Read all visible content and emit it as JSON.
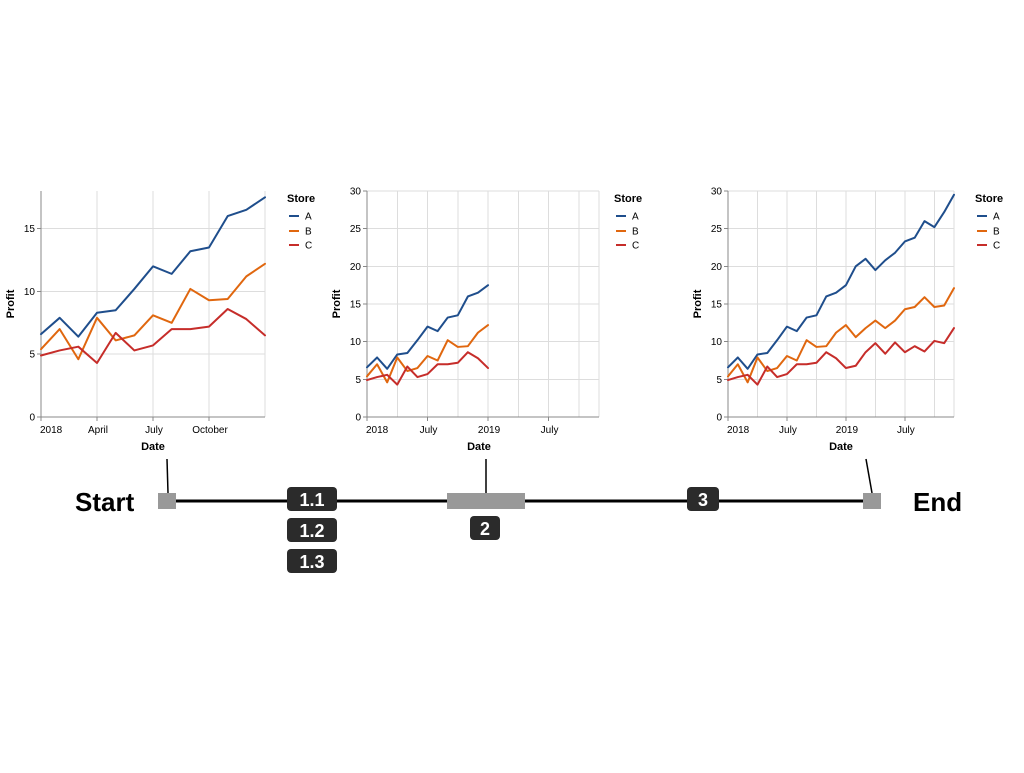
{
  "colors": {
    "A": "#1f4e8c",
    "B": "#e0670f",
    "C": "#c62d2a"
  },
  "legend": {
    "title": "Store",
    "items": [
      "A",
      "B",
      "C"
    ]
  },
  "chart_data": [
    {
      "type": "line",
      "xlabel": "Date",
      "ylabel": "Profit",
      "x_ticks": [
        "2018",
        "April",
        "July",
        "October"
      ],
      "y_ticks": [
        "0",
        "5",
        "10",
        "15"
      ],
      "ylim": [
        0,
        18
      ],
      "x": [
        "2018-01",
        "2018-02",
        "2018-03",
        "2018-04",
        "2018-05",
        "2018-06",
        "2018-07",
        "2018-08",
        "2018-09",
        "2018-10",
        "2018-11",
        "2018-12",
        "2019-01"
      ],
      "series": [
        {
          "name": "A",
          "values": [
            6.6,
            7.9,
            6.4,
            8.3,
            8.5,
            10.2,
            12.0,
            11.4,
            13.2,
            13.5,
            16.0,
            16.5,
            17.5
          ]
        },
        {
          "name": "B",
          "values": [
            5.4,
            7.0,
            4.6,
            7.9,
            6.1,
            6.5,
            8.1,
            7.5,
            10.2,
            9.3,
            9.4,
            11.2,
            12.2
          ]
        },
        {
          "name": "C",
          "values": [
            4.9,
            5.3,
            5.6,
            4.3,
            6.7,
            5.3,
            5.7,
            7.0,
            7.0,
            7.2,
            8.6,
            7.8,
            6.5
          ]
        }
      ]
    },
    {
      "type": "line",
      "xlabel": "Date",
      "ylabel": "Profit",
      "x_ticks": [
        "2018",
        "July",
        "2019",
        "July"
      ],
      "y_ticks": [
        "0",
        "5",
        "10",
        "15",
        "20",
        "25",
        "30"
      ],
      "ylim": [
        0,
        30
      ],
      "x": [
        "2018-01",
        "2018-02",
        "2018-03",
        "2018-04",
        "2018-05",
        "2018-06",
        "2018-07",
        "2018-08",
        "2018-09",
        "2018-10",
        "2018-11",
        "2018-12",
        "2019-01"
      ],
      "series": [
        {
          "name": "A",
          "values": [
            6.6,
            7.9,
            6.4,
            8.3,
            8.5,
            10.2,
            12.0,
            11.4,
            13.2,
            13.5,
            16.0,
            16.5,
            17.5
          ]
        },
        {
          "name": "B",
          "values": [
            5.4,
            7.0,
            4.6,
            7.9,
            6.1,
            6.5,
            8.1,
            7.5,
            10.2,
            9.3,
            9.4,
            11.2,
            12.2
          ]
        },
        {
          "name": "C",
          "values": [
            4.9,
            5.3,
            5.6,
            4.3,
            6.7,
            5.3,
            5.7,
            7.0,
            7.0,
            7.2,
            8.6,
            7.8,
            6.5
          ]
        }
      ]
    },
    {
      "type": "line",
      "xlabel": "Date",
      "ylabel": "Profit",
      "x_ticks": [
        "2018",
        "July",
        "2019",
        "July"
      ],
      "y_ticks": [
        "0",
        "5",
        "10",
        "15",
        "20",
        "25",
        "30"
      ],
      "ylim": [
        0,
        30
      ],
      "x": [
        "2018-01",
        "2018-02",
        "2018-03",
        "2018-04",
        "2018-05",
        "2018-06",
        "2018-07",
        "2018-08",
        "2018-09",
        "2018-10",
        "2018-11",
        "2018-12",
        "2019-01",
        "2019-02",
        "2019-03",
        "2019-04",
        "2019-05",
        "2019-06",
        "2019-07",
        "2019-08",
        "2019-09",
        "2019-10",
        "2019-11",
        "2019-12"
      ],
      "series": [
        {
          "name": "A",
          "values": [
            6.6,
            7.9,
            6.4,
            8.3,
            8.5,
            10.2,
            12.0,
            11.4,
            13.2,
            13.5,
            16.0,
            16.5,
            17.5,
            20.0,
            21.0,
            19.5,
            20.8,
            21.8,
            23.3,
            23.8,
            26.0,
            25.2,
            27.2,
            29.5
          ]
        },
        {
          "name": "B",
          "values": [
            5.4,
            7.0,
            4.6,
            7.9,
            6.1,
            6.5,
            8.1,
            7.5,
            10.2,
            9.3,
            9.4,
            11.2,
            12.2,
            10.6,
            11.8,
            12.8,
            11.8,
            12.8,
            14.3,
            14.6,
            15.9,
            14.6,
            14.8,
            17.1
          ]
        },
        {
          "name": "C",
          "values": [
            4.9,
            5.3,
            5.6,
            4.3,
            6.7,
            5.3,
            5.7,
            7.0,
            7.0,
            7.2,
            8.6,
            7.8,
            6.5,
            6.8,
            8.6,
            9.8,
            8.4,
            9.9,
            8.6,
            9.4,
            8.7,
            10.1,
            9.8,
            11.8
          ]
        }
      ]
    }
  ],
  "timeline": {
    "start_label": "Start",
    "end_label": "End",
    "badges": [
      "1.1",
      "1.2",
      "1.3",
      "2",
      "3"
    ]
  }
}
